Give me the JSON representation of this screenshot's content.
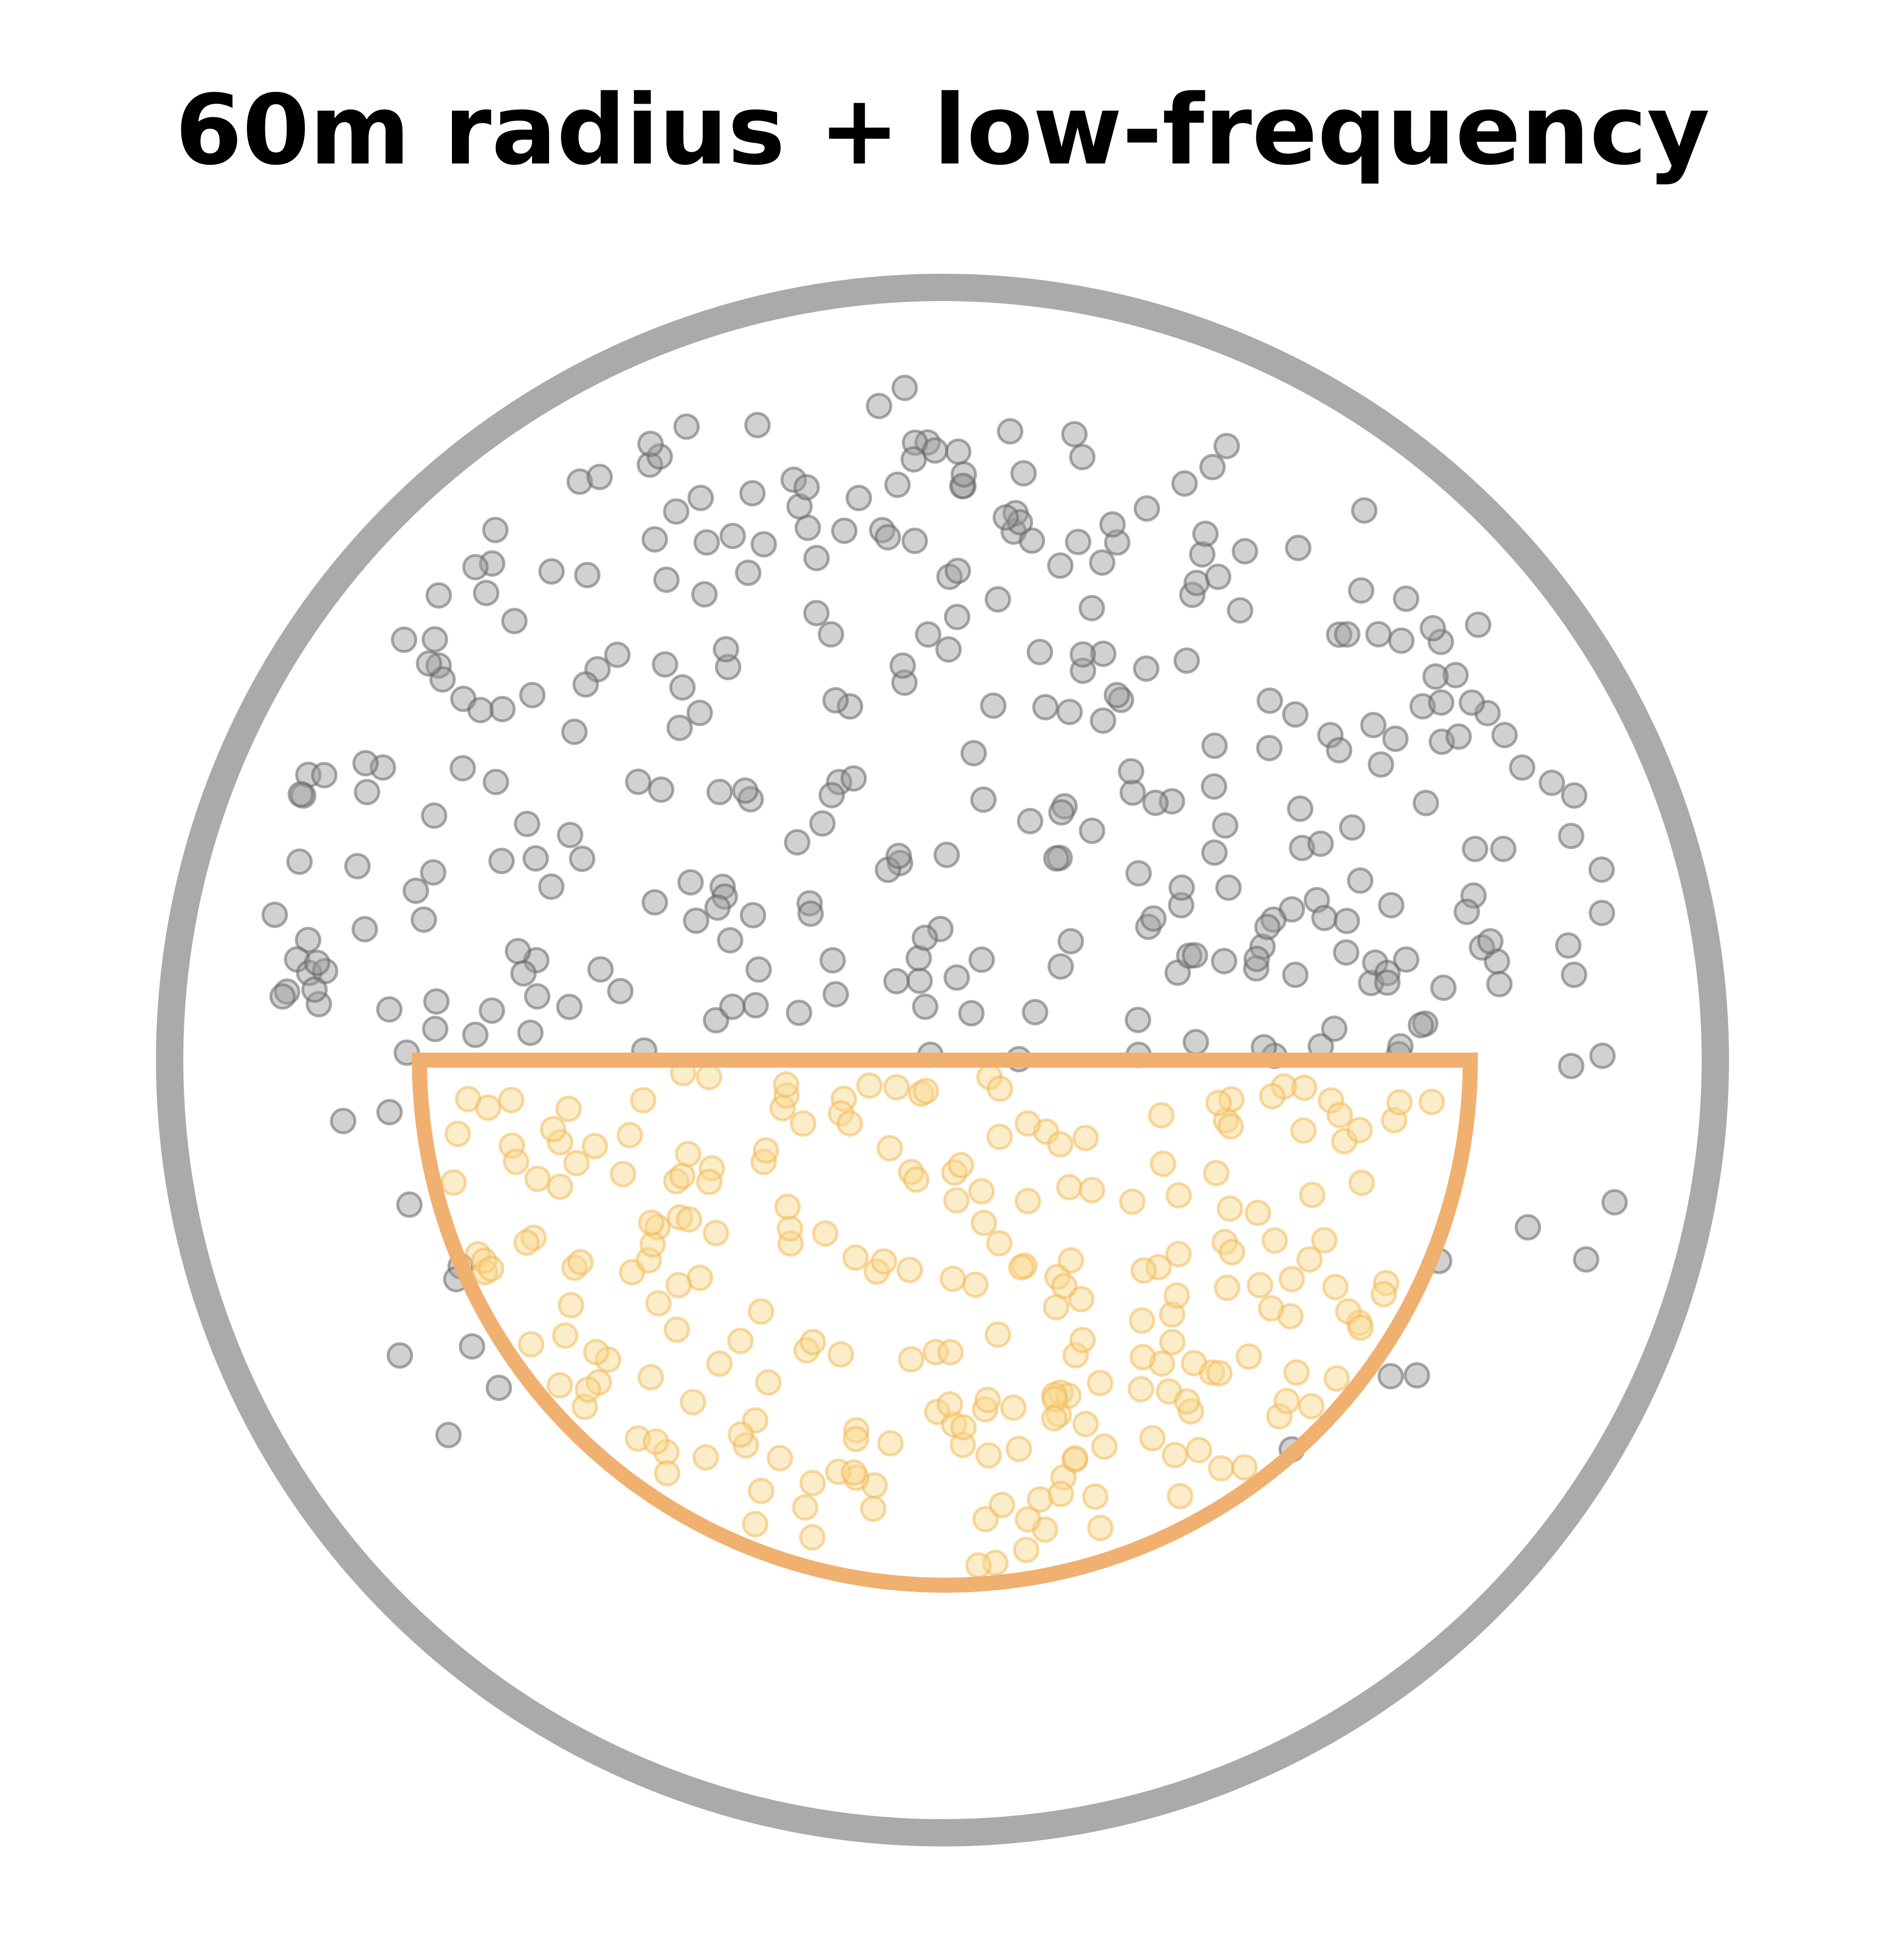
{
  "title": "60m radius + low-frequency",
  "colors": {
    "outer_circle": "#aaaaaa",
    "half_disc_outline": "#f0b070",
    "dot_outside": "#999999",
    "dot_outside_stroke": "#666666",
    "dot_inside": "#f8d68a",
    "dot_inside_stroke": "#f3b95a",
    "background": "#ffffff"
  },
  "legend": []
}
